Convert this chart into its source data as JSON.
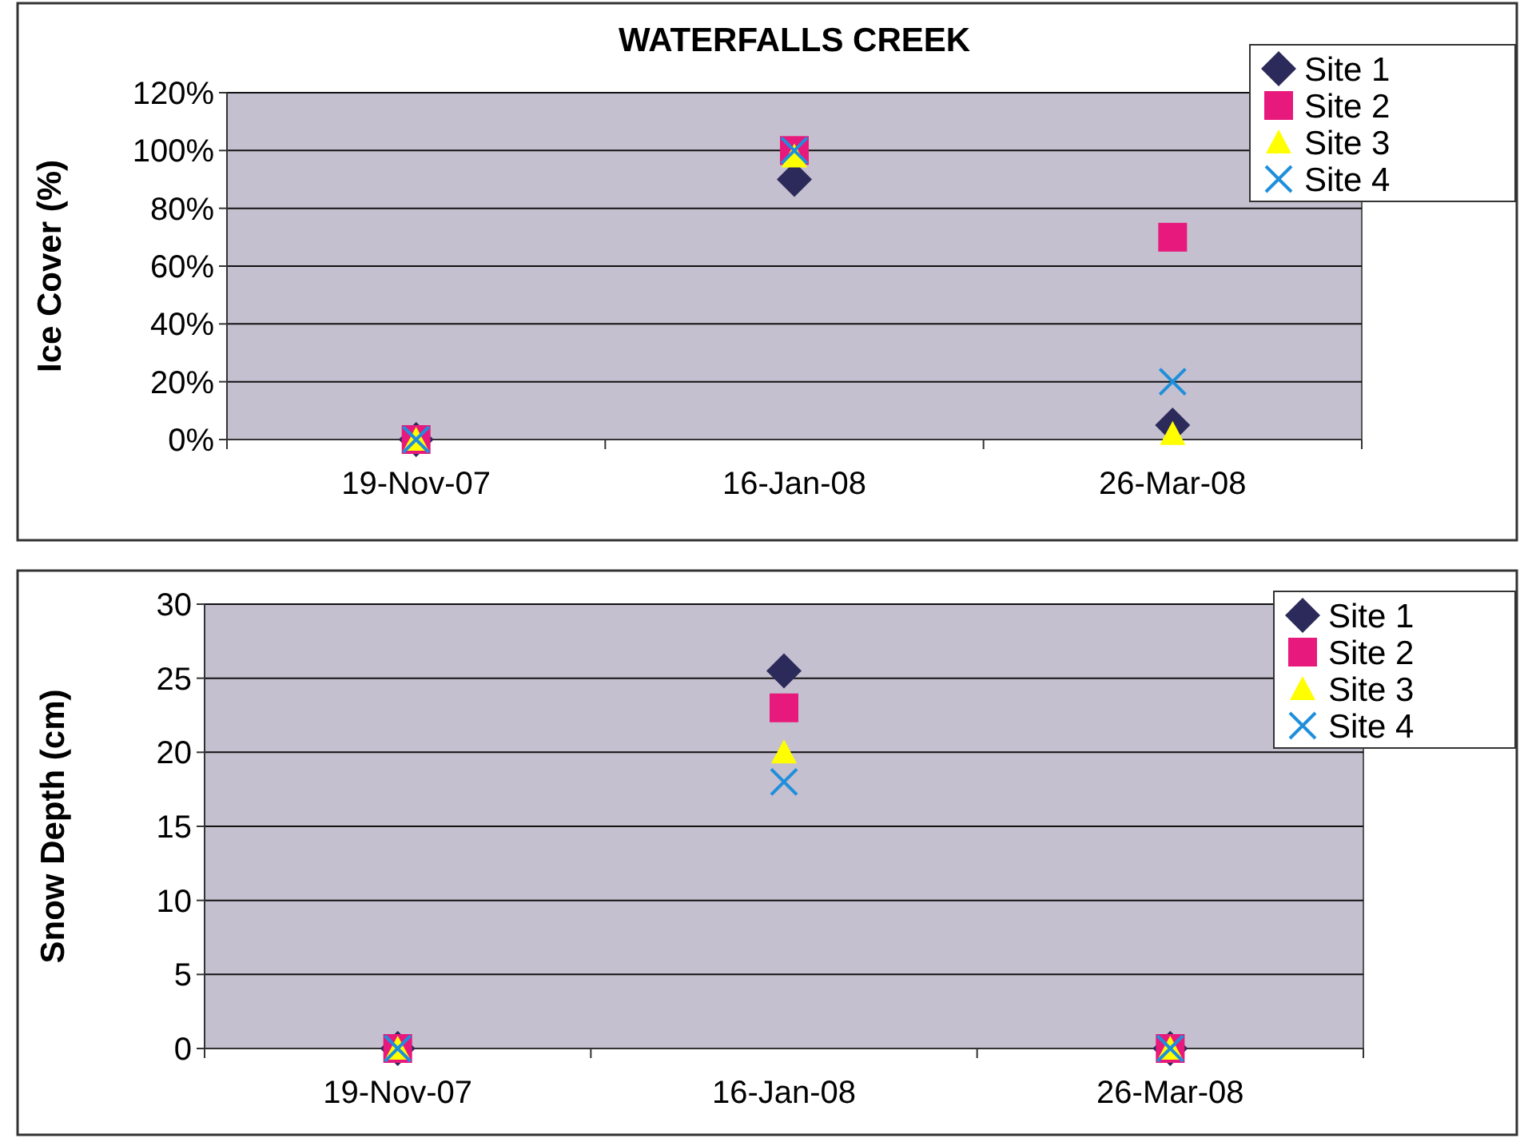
{
  "chart_data": [
    {
      "type": "scatter",
      "title": "WATERFALLS CREEK",
      "ylabel": "Ice Cover (%)",
      "categories": [
        "19-Nov-07",
        "16-Jan-08",
        "26-Mar-08"
      ],
      "ylim": [
        0,
        120
      ],
      "yticks": [
        {
          "value": 0,
          "label": "0%"
        },
        {
          "value": 20,
          "label": "20%"
        },
        {
          "value": 40,
          "label": "40%"
        },
        {
          "value": 60,
          "label": "60%"
        },
        {
          "value": 80,
          "label": "80%"
        },
        {
          "value": 100,
          "label": "100%"
        },
        {
          "value": 120,
          "label": "120%"
        }
      ],
      "grid": "y",
      "legend": "top right",
      "series": [
        {
          "name": "Site 1",
          "color": "#2b2a5a",
          "marker": "diamond",
          "values": [
            0,
            90,
            5
          ]
        },
        {
          "name": "Site 2",
          "color": "#e8197d",
          "marker": "square",
          "values": [
            0,
            100,
            70
          ]
        },
        {
          "name": "Site 3",
          "color": "#ffff00",
          "marker": "triangle",
          "values": [
            0,
            98,
            2
          ]
        },
        {
          "name": "Site 4",
          "color": "#1f8fdc",
          "marker": "cross",
          "values": [
            0,
            100,
            20
          ]
        }
      ]
    },
    {
      "type": "scatter",
      "ylabel": "Snow Depth (cm)",
      "categories": [
        "19-Nov-07",
        "16-Jan-08",
        "26-Mar-08"
      ],
      "ylim": [
        0,
        30
      ],
      "yticks": [
        0,
        5,
        10,
        15,
        20,
        25,
        30
      ],
      "grid": "y",
      "legend": "top right",
      "series": [
        {
          "name": "Site 1",
          "color": "#2b2a5a",
          "marker": "diamond",
          "values": [
            0,
            25.5,
            0
          ]
        },
        {
          "name": "Site 2",
          "color": "#e8197d",
          "marker": "square",
          "values": [
            0,
            23,
            0
          ]
        },
        {
          "name": "Site 3",
          "color": "#ffff00",
          "marker": "triangle",
          "values": [
            0,
            20,
            0
          ]
        },
        {
          "name": "Site 4",
          "color": "#1f8fdc",
          "marker": "cross",
          "values": [
            0,
            18,
            0
          ]
        }
      ]
    }
  ]
}
